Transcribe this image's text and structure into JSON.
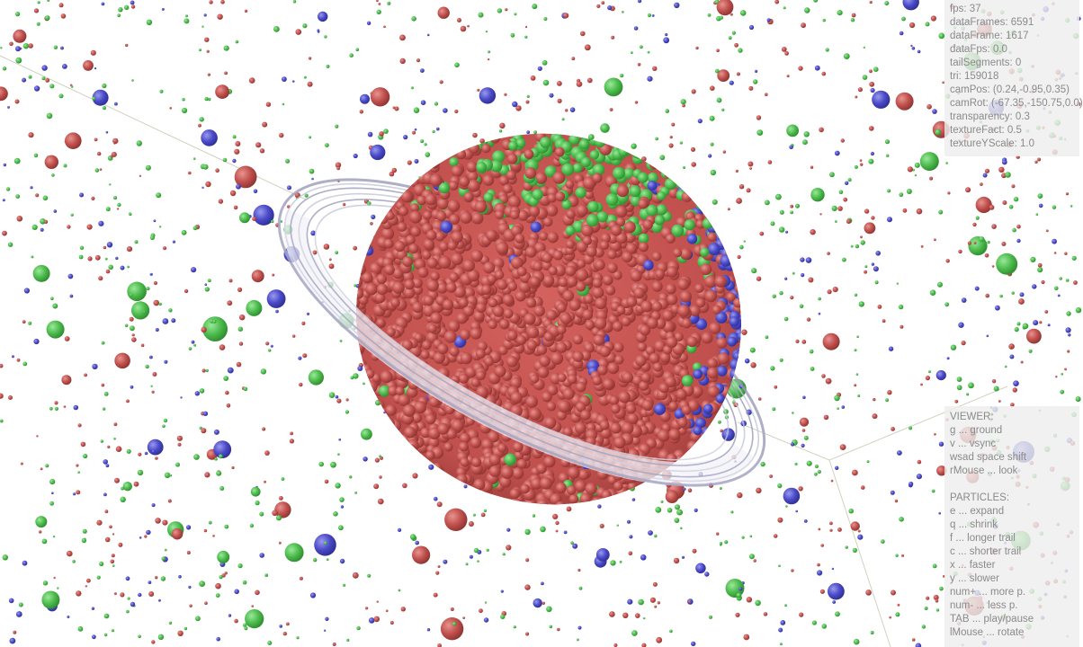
{
  "colors": {
    "background": "#ffffff",
    "particle_red": "#c0504d",
    "particle_green": "#4cbb4c",
    "particle_blue": "#4a4ac8",
    "ring": "#9a9ab8",
    "panel_bg": "#eeeeee",
    "panel_text": "#8a8a8a"
  },
  "stats": {
    "fps": "fps: 37",
    "data_frames": "dataFrames: 6591",
    "data_frame": "dataFrame: 1617",
    "data_fps": "dataFps: 0.0",
    "tail_segments": "tailSegments: 0",
    "tri": "tri: 159018",
    "cam_pos": "camPos: (0.24,-0.95,0.35)",
    "cam_rot": "camRot: (-67.35,-150.75,0.0)",
    "transparency": "transparency: 0.3",
    "texture_fact": "textureFact: 0.5",
    "texture_y_scale": "textureYScale: 1.0"
  },
  "help": {
    "viewer_title": "VIEWER:",
    "viewer_items": [
      "g ... ground",
      "v ... vsync",
      "wsad space shift",
      "rMouse ... look"
    ],
    "particles_title": "PARTICLES:",
    "particle_items": [
      "e ... expand",
      "q ... shrink",
      "f ... longer trail",
      "c ... shorter trail",
      "x ... faster",
      "y ... slower",
      "num+ ... more p.",
      "num- ... less p.",
      "TAB ... play/pause",
      "lMouse ... rotate"
    ]
  }
}
